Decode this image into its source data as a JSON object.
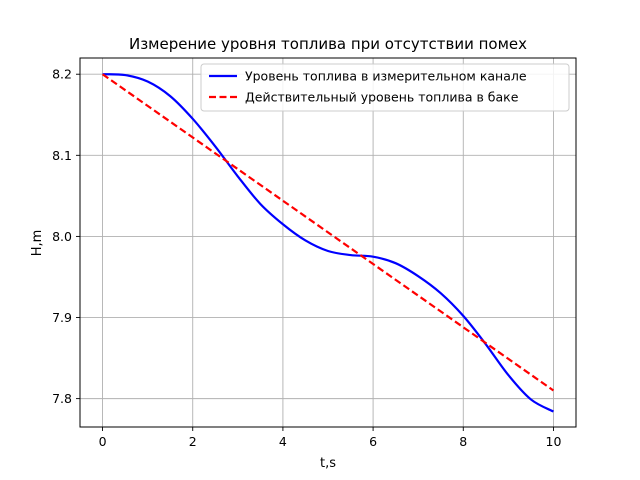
{
  "chart_data": {
    "type": "line",
    "title": "Измерение уровня топлива при отсутствии помех",
    "xlabel": "t,s",
    "ylabel": "H,m",
    "xlim": [
      -0.5,
      10.5
    ],
    "ylim": [
      7.765,
      8.22
    ],
    "xticks": [
      0,
      2,
      4,
      6,
      8,
      10
    ],
    "yticks": [
      7.8,
      7.9,
      8.0,
      8.1,
      8.2
    ],
    "xtick_labels": [
      "0",
      "2",
      "4",
      "6",
      "8",
      "10"
    ],
    "ytick_labels": [
      "7.8",
      "7.9",
      "8.0",
      "8.1",
      "8.2"
    ],
    "grid": true,
    "legend_position": "top-right",
    "series": [
      {
        "name": "Уровень топлива в измерительном канале",
        "color": "#0000ff",
        "style": "solid",
        "x": [
          0,
          0.5,
          1,
          1.5,
          2,
          2.5,
          3,
          3.5,
          4,
          4.5,
          5,
          5.5,
          6,
          6.5,
          7,
          7.5,
          8,
          8.5,
          9,
          9.5,
          10
        ],
        "y": [
          8.2,
          8.199,
          8.191,
          8.173,
          8.145,
          8.111,
          8.074,
          8.04,
          8.015,
          7.995,
          7.982,
          7.977,
          7.975,
          7.967,
          7.951,
          7.93,
          7.902,
          7.867,
          7.829,
          7.799,
          7.784
        ]
      },
      {
        "name": "Действительный уровень топлива в баке",
        "color": "#ff0000",
        "style": "dashed",
        "x": [
          0,
          10
        ],
        "y": [
          8.2,
          7.81
        ]
      }
    ]
  }
}
